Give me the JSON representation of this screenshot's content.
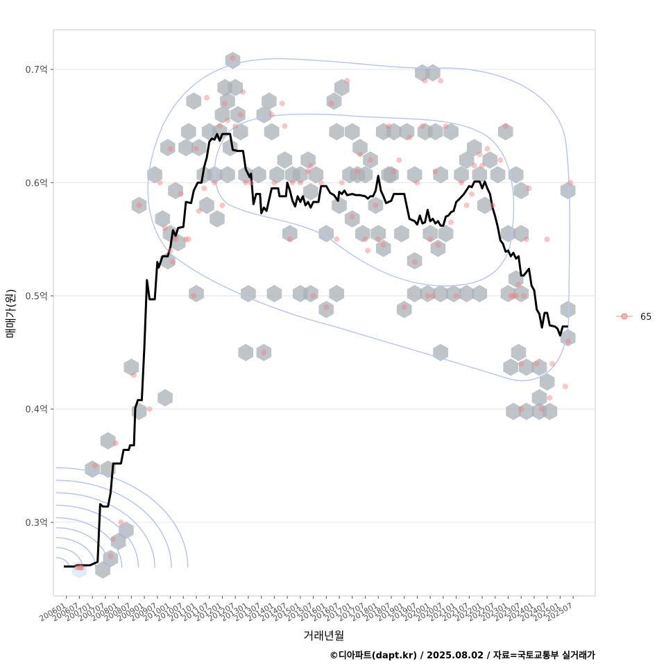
{
  "chart_data": {
    "type": "scatter",
    "title": "",
    "xlabel": "거래년월",
    "ylabel": "매매가(원)",
    "x_ticks": [
      "200601",
      "200607",
      "200701",
      "200707",
      "200801",
      "200807",
      "200901",
      "200907",
      "201001",
      "201007",
      "201101",
      "201107",
      "201201",
      "201207",
      "201301",
      "201307",
      "201401",
      "201407",
      "201501",
      "201507",
      "201601",
      "201607",
      "201701",
      "201707",
      "201801",
      "201807",
      "201901",
      "201907",
      "202001",
      "202007",
      "202101",
      "202107",
      "202201",
      "202207",
      "202301",
      "202307",
      "202401",
      "202407",
      "202501",
      "202507"
    ],
    "y_ticks": [
      0.3,
      0.4,
      0.5,
      0.6,
      0.7
    ],
    "y_tick_labels": [
      "0.3억",
      "0.4억",
      "0.5억",
      "0.6억",
      "0.7억"
    ],
    "ylim": [
      0.235,
      0.735
    ],
    "xlim": [
      2005.5,
      2026.35
    ],
    "legend": {
      "label": "65",
      "position": "right"
    },
    "colors": {
      "points": "#f08080",
      "hex": "#aab0b5",
      "trend": "#000000",
      "density": "#b3c6f0",
      "grid": "#e6e6e6",
      "frame": "#c8c8c8"
    },
    "hex_bins": [
      [
        2006.5,
        0.258
      ],
      [
        2007.4,
        0.258
      ],
      [
        2007.7,
        0.268
      ],
      [
        2008.0,
        0.283
      ],
      [
        2008.3,
        0.293
      ],
      [
        2007.0,
        0.347
      ],
      [
        2007.6,
        0.347
      ],
      [
        2007.6,
        0.372
      ],
      [
        2008.5,
        0.437
      ],
      [
        2008.8,
        0.398
      ],
      [
        2008.8,
        0.58
      ],
      [
        2009.4,
        0.607
      ],
      [
        2009.7,
        0.568
      ],
      [
        2009.9,
        0.631
      ],
      [
        2010.0,
        0.555
      ],
      [
        2010.2,
        0.593
      ],
      [
        2009.9,
        0.531
      ],
      [
        2010.3,
        0.547
      ],
      [
        2010.6,
        0.631
      ],
      [
        2010.7,
        0.645
      ],
      [
        2010.9,
        0.672
      ],
      [
        2011.1,
        0.631
      ],
      [
        2011.3,
        0.607
      ],
      [
        2011.5,
        0.645
      ],
      [
        2011.4,
        0.58
      ],
      [
        2011.7,
        0.607
      ],
      [
        2011.8,
        0.568
      ],
      [
        2011.9,
        0.645
      ],
      [
        2012.0,
        0.66
      ],
      [
        2012.2,
        0.672
      ],
      [
        2012.1,
        0.684
      ],
      [
        2012.2,
        0.607
      ],
      [
        2012.3,
        0.631
      ],
      [
        2012.4,
        0.708
      ],
      [
        2012.5,
        0.684
      ],
      [
        2012.6,
        0.66
      ],
      [
        2012.7,
        0.645
      ],
      [
        2012.9,
        0.607
      ],
      [
        2012.9,
        0.45
      ],
      [
        2013.6,
        0.45
      ],
      [
        2013.4,
        0.607
      ],
      [
        2013.6,
        0.66
      ],
      [
        2013.8,
        0.672
      ],
      [
        2013.9,
        0.645
      ],
      [
        2014.1,
        0.607
      ],
      [
        2014.4,
        0.62
      ],
      [
        2014.7,
        0.607
      ],
      [
        2014.6,
        0.555
      ],
      [
        2015.0,
        0.607
      ],
      [
        2015.3,
        0.62
      ],
      [
        2015.4,
        0.592
      ],
      [
        2015.6,
        0.607
      ],
      [
        2016.0,
        0.555
      ],
      [
        2016.3,
        0.672
      ],
      [
        2016.4,
        0.645
      ],
      [
        2016.6,
        0.684
      ],
      [
        2016.5,
        0.58
      ],
      [
        2016.9,
        0.607
      ],
      [
        2017.0,
        0.645
      ],
      [
        2017.2,
        0.607
      ],
      [
        2017.3,
        0.631
      ],
      [
        2017.0,
        0.568
      ],
      [
        2017.4,
        0.555
      ],
      [
        2017.5,
        0.607
      ],
      [
        2017.7,
        0.62
      ],
      [
        2017.9,
        0.58
      ],
      [
        2018.2,
        0.645
      ],
      [
        2018.4,
        0.607
      ],
      [
        2018.6,
        0.645
      ],
      [
        2018.0,
        0.555
      ],
      [
        2018.2,
        0.542
      ],
      [
        2018.5,
        0.607
      ],
      [
        2018.9,
        0.555
      ],
      [
        2019.1,
        0.645
      ],
      [
        2019.4,
        0.607
      ],
      [
        2019.8,
        0.645
      ],
      [
        2019.7,
        0.697
      ],
      [
        2020.1,
        0.697
      ],
      [
        2020.2,
        0.645
      ],
      [
        2020.4,
        0.607
      ],
      [
        2019.4,
        0.531
      ],
      [
        2020.0,
        0.555
      ],
      [
        2020.3,
        0.542
      ],
      [
        2020.6,
        0.555
      ],
      [
        2020.8,
        0.645
      ],
      [
        2021.2,
        0.607
      ],
      [
        2021.4,
        0.62
      ],
      [
        2021.7,
        0.631
      ],
      [
        2021.9,
        0.607
      ],
      [
        2022.1,
        0.58
      ],
      [
        2022.3,
        0.62
      ],
      [
        2022.6,
        0.607
      ],
      [
        2022.9,
        0.645
      ],
      [
        2023.3,
        0.607
      ],
      [
        2023.5,
        0.593
      ],
      [
        2023.0,
        0.555
      ],
      [
        2023.5,
        0.555
      ],
      [
        2023.0,
        0.502
      ],
      [
        2023.3,
        0.515
      ],
      [
        2023.5,
        0.502
      ],
      [
        2023.1,
        0.437
      ],
      [
        2023.4,
        0.45
      ],
      [
        2023.7,
        0.437
      ],
      [
        2024.2,
        0.437
      ],
      [
        2023.2,
        0.398
      ],
      [
        2023.7,
        0.398
      ],
      [
        2024.2,
        0.398
      ],
      [
        2024.6,
        0.398
      ],
      [
        2024.2,
        0.41
      ],
      [
        2024.5,
        0.424
      ],
      [
        2025.3,
        0.593
      ],
      [
        2025.3,
        0.488
      ],
      [
        2025.3,
        0.463
      ],
      [
        2019.0,
        0.488
      ],
      [
        2011.0,
        0.502
      ],
      [
        2013.0,
        0.502
      ],
      [
        2014.0,
        0.502
      ],
      [
        2015.0,
        0.502
      ],
      [
        2015.4,
        0.502
      ],
      [
        2016.4,
        0.502
      ],
      [
        2016.0,
        0.488
      ],
      [
        2019.4,
        0.502
      ],
      [
        2019.9,
        0.502
      ],
      [
        2020.4,
        0.502
      ],
      [
        2020.9,
        0.502
      ],
      [
        2021.4,
        0.502
      ],
      [
        2021.9,
        0.502
      ],
      [
        2020.4,
        0.45
      ],
      [
        2009.8,
        0.41
      ]
    ],
    "points": [
      [
        2006.4,
        0.26
      ],
      [
        2006.5,
        0.26
      ],
      [
        2006.55,
        0.26
      ],
      [
        2006.6,
        0.26
      ],
      [
        2007.1,
        0.35
      ],
      [
        2007.7,
        0.27
      ],
      [
        2007.8,
        0.285
      ],
      [
        2007.9,
        0.37
      ],
      [
        2008.1,
        0.3
      ],
      [
        2008.6,
        0.43
      ],
      [
        2008.8,
        0.58
      ],
      [
        2009.2,
        0.4
      ],
      [
        2009.6,
        0.6
      ],
      [
        2009.8,
        0.56
      ],
      [
        2010.0,
        0.63
      ],
      [
        2010.0,
        0.54
      ],
      [
        2010.1,
        0.53
      ],
      [
        2010.2,
        0.55
      ],
      [
        2010.4,
        0.59
      ],
      [
        2010.6,
        0.55
      ],
      [
        2010.7,
        0.55
      ],
      [
        2010.9,
        0.5
      ],
      [
        2011.0,
        0.63
      ],
      [
        2011.1,
        0.575
      ],
      [
        2011.3,
        0.595
      ],
      [
        2011.4,
        0.675
      ],
      [
        2011.7,
        0.6
      ],
      [
        2011.9,
        0.65
      ],
      [
        2012.0,
        0.58
      ],
      [
        2012.1,
        0.67
      ],
      [
        2012.2,
        0.655
      ],
      [
        2012.4,
        0.71
      ],
      [
        2012.5,
        0.65
      ],
      [
        2012.7,
        0.66
      ],
      [
        2012.8,
        0.68
      ],
      [
        2012.9,
        0.6
      ],
      [
        2013.1,
        0.6
      ],
      [
        2013.6,
        0.45
      ],
      [
        2013.9,
        0.66
      ],
      [
        2014.0,
        0.6
      ],
      [
        2014.3,
        0.67
      ],
      [
        2014.4,
        0.65
      ],
      [
        2014.6,
        0.55
      ],
      [
        2014.7,
        0.6
      ],
      [
        2015.0,
        0.6
      ],
      [
        2015.3,
        0.61
      ],
      [
        2015.4,
        0.615
      ],
      [
        2015.5,
        0.5
      ],
      [
        2015.8,
        0.6
      ],
      [
        2016.2,
        0.67
      ],
      [
        2016.4,
        0.55
      ],
      [
        2016.6,
        0.6
      ],
      [
        2016.8,
        0.69
      ],
      [
        2017.0,
        0.57
      ],
      [
        2017.2,
        0.61
      ],
      [
        2017.3,
        0.625
      ],
      [
        2017.5,
        0.55
      ],
      [
        2017.6,
        0.54
      ],
      [
        2017.7,
        0.62
      ],
      [
        2017.9,
        0.58
      ],
      [
        2018.0,
        0.55
      ],
      [
        2018.2,
        0.545
      ],
      [
        2018.4,
        0.65
      ],
      [
        2018.6,
        0.61
      ],
      [
        2018.8,
        0.62
      ],
      [
        2019.0,
        0.49
      ],
      [
        2019.2,
        0.64
      ],
      [
        2019.4,
        0.53
      ],
      [
        2019.5,
        0.6
      ],
      [
        2019.7,
        0.65
      ],
      [
        2019.8,
        0.69
      ],
      [
        2019.9,
        0.5
      ],
      [
        2020.0,
        0.55
      ],
      [
        2020.1,
        0.5
      ],
      [
        2020.2,
        0.61
      ],
      [
        2020.3,
        0.545
      ],
      [
        2020.4,
        0.69
      ],
      [
        2020.6,
        0.65
      ],
      [
        2020.8,
        0.565
      ],
      [
        2021.0,
        0.5
      ],
      [
        2021.2,
        0.6
      ],
      [
        2021.4,
        0.58
      ],
      [
        2021.6,
        0.59
      ],
      [
        2021.7,
        0.615
      ],
      [
        2021.9,
        0.625
      ],
      [
        2022.0,
        0.615
      ],
      [
        2022.2,
        0.63
      ],
      [
        2022.4,
        0.58
      ],
      [
        2022.7,
        0.62
      ],
      [
        2022.9,
        0.65
      ],
      [
        2023.1,
        0.5
      ],
      [
        2023.2,
        0.5
      ],
      [
        2023.3,
        0.5
      ],
      [
        2023.4,
        0.51
      ],
      [
        2023.5,
        0.44
      ],
      [
        2023.5,
        0.4
      ],
      [
        2023.6,
        0.5
      ],
      [
        2023.7,
        0.55
      ],
      [
        2023.8,
        0.595
      ],
      [
        2024.1,
        0.44
      ],
      [
        2024.3,
        0.4
      ],
      [
        2024.5,
        0.55
      ],
      [
        2024.6,
        0.41
      ],
      [
        2024.7,
        0.44
      ],
      [
        2025.2,
        0.42
      ],
      [
        2025.3,
        0.46
      ],
      [
        2025.4,
        0.6
      ],
      [
        2016.0,
        0.49
      ]
    ],
    "trend": [
      [
        2005.9,
        0.261
      ],
      [
        2006.3,
        0.261
      ],
      [
        2006.4,
        0.262
      ],
      [
        2006.9,
        0.262
      ],
      [
        2007.0,
        0.263
      ],
      [
        2007.2,
        0.265
      ],
      [
        2007.3,
        0.316
      ],
      [
        2007.4,
        0.314
      ],
      [
        2007.6,
        0.314
      ],
      [
        2007.7,
        0.326
      ],
      [
        2007.8,
        0.352
      ],
      [
        2008.1,
        0.352
      ],
      [
        2008.2,
        0.364
      ],
      [
        2008.4,
        0.364
      ],
      [
        2008.45,
        0.368
      ],
      [
        2008.6,
        0.368
      ],
      [
        2008.65,
        0.401
      ],
      [
        2008.75,
        0.408
      ],
      [
        2008.9,
        0.408
      ],
      [
        2009.0,
        0.455
      ],
      [
        2009.1,
        0.514
      ],
      [
        2009.2,
        0.497
      ],
      [
        2009.4,
        0.497
      ],
      [
        2009.5,
        0.53
      ],
      [
        2009.55,
        0.525
      ],
      [
        2009.7,
        0.535
      ],
      [
        2009.9,
        0.535
      ],
      [
        2010.0,
        0.543
      ],
      [
        2010.1,
        0.558
      ],
      [
        2010.2,
        0.553
      ],
      [
        2010.3,
        0.56
      ],
      [
        2010.5,
        0.561
      ],
      [
        2010.6,
        0.583
      ],
      [
        2010.8,
        0.582
      ],
      [
        2010.9,
        0.593
      ],
      [
        2011.05,
        0.6
      ],
      [
        2011.2,
        0.6
      ],
      [
        2011.3,
        0.614
      ],
      [
        2011.4,
        0.622
      ],
      [
        2011.5,
        0.636
      ],
      [
        2011.6,
        0.639
      ],
      [
        2011.7,
        0.638
      ],
      [
        2011.8,
        0.643
      ],
      [
        2011.9,
        0.637
      ],
      [
        2012.0,
        0.643
      ],
      [
        2012.3,
        0.643
      ],
      [
        2012.4,
        0.629
      ],
      [
        2012.6,
        0.628
      ],
      [
        2012.8,
        0.628
      ],
      [
        2012.9,
        0.612
      ],
      [
        2013.05,
        0.605
      ],
      [
        2013.1,
        0.608
      ],
      [
        2013.2,
        0.581
      ],
      [
        2013.3,
        0.59
      ],
      [
        2013.45,
        0.59
      ],
      [
        2013.5,
        0.573
      ],
      [
        2013.6,
        0.578
      ],
      [
        2013.7,
        0.575
      ],
      [
        2013.9,
        0.595
      ],
      [
        2014.15,
        0.595
      ],
      [
        2014.2,
        0.588
      ],
      [
        2014.45,
        0.588
      ],
      [
        2014.5,
        0.6
      ],
      [
        2014.6,
        0.593
      ],
      [
        2014.7,
        0.584
      ],
      [
        2014.8,
        0.579
      ],
      [
        2014.9,
        0.588
      ],
      [
        2015.0,
        0.583
      ],
      [
        2015.1,
        0.588
      ],
      [
        2015.2,
        0.58
      ],
      [
        2015.3,
        0.583
      ],
      [
        2015.4,
        0.578
      ],
      [
        2015.5,
        0.583
      ],
      [
        2015.7,
        0.583
      ],
      [
        2015.8,
        0.597
      ],
      [
        2016.0,
        0.597
      ],
      [
        2016.15,
        0.591
      ],
      [
        2016.3,
        0.589
      ],
      [
        2016.45,
        0.584
      ],
      [
        2016.5,
        0.592
      ],
      [
        2016.6,
        0.59
      ],
      [
        2016.7,
        0.593
      ],
      [
        2016.8,
        0.589
      ],
      [
        2017.0,
        0.59
      ],
      [
        2017.15,
        0.589
      ],
      [
        2017.3,
        0.589
      ],
      [
        2017.5,
        0.588
      ],
      [
        2017.6,
        0.586
      ],
      [
        2017.7,
        0.588
      ],
      [
        2017.8,
        0.588
      ],
      [
        2017.9,
        0.593
      ],
      [
        2018.0,
        0.606
      ],
      [
        2018.1,
        0.593
      ],
      [
        2018.2,
        0.588
      ],
      [
        2018.3,
        0.582
      ],
      [
        2018.5,
        0.584
      ],
      [
        2018.6,
        0.59
      ],
      [
        2018.8,
        0.59
      ],
      [
        2019.0,
        0.59
      ],
      [
        2019.1,
        0.579
      ],
      [
        2019.2,
        0.568
      ],
      [
        2019.4,
        0.566
      ],
      [
        2019.5,
        0.563
      ],
      [
        2019.6,
        0.571
      ],
      [
        2019.7,
        0.564
      ],
      [
        2019.8,
        0.565
      ],
      [
        2019.9,
        0.576
      ],
      [
        2020.0,
        0.566
      ],
      [
        2020.1,
        0.568
      ],
      [
        2020.2,
        0.564
      ],
      [
        2020.3,
        0.566
      ],
      [
        2020.4,
        0.562
      ],
      [
        2020.5,
        0.562
      ],
      [
        2020.6,
        0.57
      ],
      [
        2020.7,
        0.571
      ],
      [
        2020.8,
        0.574
      ],
      [
        2020.9,
        0.575
      ],
      [
        2021.0,
        0.583
      ],
      [
        2021.1,
        0.585
      ],
      [
        2021.3,
        0.59
      ],
      [
        2021.5,
        0.597
      ],
      [
        2021.6,
        0.596
      ],
      [
        2021.7,
        0.601
      ],
      [
        2021.9,
        0.601
      ],
      [
        2022.0,
        0.595
      ],
      [
        2022.1,
        0.601
      ],
      [
        2022.2,
        0.595
      ],
      [
        2022.3,
        0.59
      ],
      [
        2022.4,
        0.578
      ],
      [
        2022.5,
        0.57
      ],
      [
        2022.6,
        0.561
      ],
      [
        2022.7,
        0.549
      ],
      [
        2022.8,
        0.546
      ],
      [
        2022.9,
        0.539
      ],
      [
        2023.0,
        0.54
      ],
      [
        2023.1,
        0.535
      ],
      [
        2023.2,
        0.538
      ],
      [
        2023.3,
        0.533
      ],
      [
        2023.4,
        0.535
      ],
      [
        2023.5,
        0.518
      ],
      [
        2023.6,
        0.518
      ],
      [
        2023.8,
        0.524
      ],
      [
        2023.9,
        0.509
      ],
      [
        2024.0,
        0.505
      ],
      [
        2024.1,
        0.488
      ],
      [
        2024.2,
        0.484
      ],
      [
        2024.3,
        0.472
      ],
      [
        2024.4,
        0.485
      ],
      [
        2024.5,
        0.485
      ],
      [
        2024.6,
        0.474
      ],
      [
        2024.8,
        0.473
      ],
      [
        2024.9,
        0.471
      ],
      [
        2025.0,
        0.465
      ],
      [
        2025.1,
        0.473
      ],
      [
        2025.3,
        0.473
      ]
    ]
  },
  "legend_label": "65",
  "caption": "©디아파트(dapt.kr) / 2025.08.02 / 자료=국토교통부 실거래가"
}
